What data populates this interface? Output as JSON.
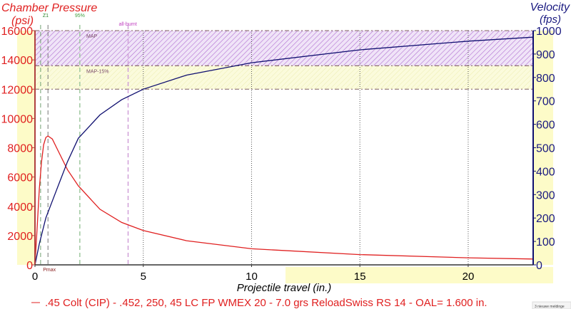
{
  "chart_data": {
    "type": "line",
    "title_left": "Chamber Pressure",
    "unit_left": "(psi)",
    "title_right": "Velocity",
    "unit_right": "(fps)",
    "xlabel": "Projectile travel (in.)",
    "xlim": [
      0,
      23
    ],
    "ylim_left": [
      0,
      16000
    ],
    "ylim_right": [
      0,
      1000
    ],
    "x_ticks": [
      0,
      5,
      10,
      15,
      20
    ],
    "y_ticks_left": [
      0,
      2000,
      4000,
      6000,
      8000,
      10000,
      12000,
      14000,
      16000
    ],
    "y_ticks_right": [
      0,
      100,
      200,
      300,
      400,
      500,
      600,
      700,
      800,
      900,
      1000
    ],
    "bands": [
      {
        "label": "MAP",
        "from": 13600,
        "to": 16000,
        "color": "#c080e0"
      },
      {
        "label": "MAP-15%",
        "from": 12000,
        "to": 13600,
        "color": "#f0f0a0"
      }
    ],
    "markers": [
      {
        "label": "Z1",
        "x": 0.26,
        "color": "#208020"
      },
      {
        "label": "Pmax",
        "x": 0.6,
        "color": "#606060"
      },
      {
        "label": "95%",
        "x": 2.07,
        "color": "#40a040"
      },
      {
        "label": "all-burnt",
        "x": 4.3,
        "color": "#c040c0"
      }
    ],
    "series": [
      {
        "name": "Pressure",
        "axis": "left",
        "color": "#e02020",
        "x": [
          0,
          0.1,
          0.2,
          0.3,
          0.4,
          0.5,
          0.6,
          0.8,
          1,
          1.5,
          2,
          3,
          4,
          5,
          7,
          10,
          15,
          20,
          23
        ],
        "y": [
          0,
          2500,
          5200,
          7000,
          8200,
          8700,
          8800,
          8600,
          8000,
          6500,
          5400,
          3800,
          2900,
          2350,
          1650,
          1100,
          700,
          480,
          400
        ]
      },
      {
        "name": "Velocity",
        "axis": "right",
        "color": "#101070",
        "x": [
          0,
          0.2,
          0.5,
          1,
          1.5,
          2,
          3,
          4,
          5,
          7,
          10,
          15,
          20,
          23
        ],
        "y": [
          0,
          90,
          200,
          320,
          440,
          540,
          640,
          705,
          750,
          810,
          863,
          918,
          955,
          972
        ]
      }
    ],
    "legend": ".45 Colt (CIP) - .452, 250, 45 LC FP WMEX 20 - 7.0 grs ReloadSwiss RS 14 - OAL= 1.600 in.",
    "notification": "3 nieuwe meldinge"
  }
}
